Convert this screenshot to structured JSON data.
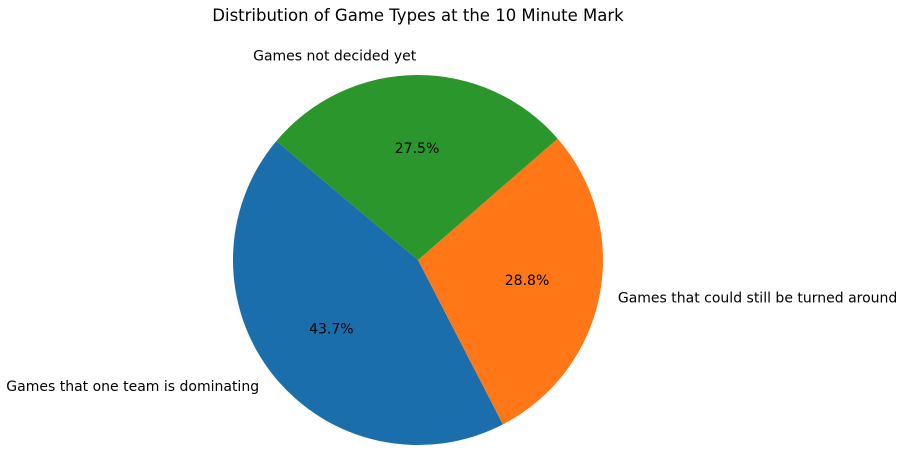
{
  "chart_data": {
    "type": "pie",
    "title": "Distribution of Game Types at the 10 Minute Mark",
    "start_angle_deg": 140,
    "counterclockwise": true,
    "slices": [
      {
        "label": "Games that one team is dominating",
        "value": 43.7,
        "pct_label": "43.7%",
        "color": "#1a6eab"
      },
      {
        "label": "Games that could still be turned around",
        "value": 28.8,
        "pct_label": "28.8%",
        "color": "#ff7716"
      },
      {
        "label": "Games not decided yet",
        "value": 27.5,
        "pct_label": "27.5%",
        "color": "#2b962b"
      }
    ]
  }
}
